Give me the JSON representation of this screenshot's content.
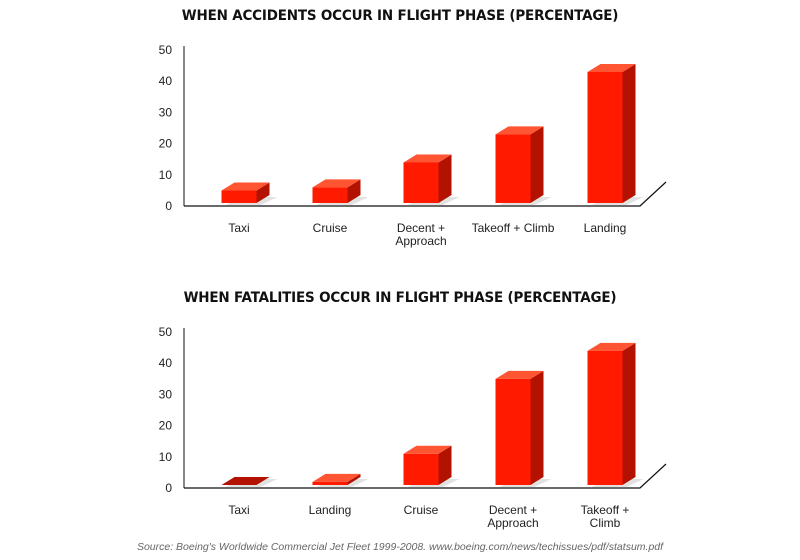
{
  "chart_data": [
    {
      "type": "bar",
      "title": "WHEN ACCIDENTS OCCUR IN FLIGHT PHASE (PERCENTAGE)",
      "categories": [
        "Taxi",
        "Cruise",
        "Decent + Approach",
        "Takeoff + Climb",
        "Landing"
      ],
      "category_lines": [
        [
          "Taxi"
        ],
        [
          "Cruise"
        ],
        [
          "Decent +",
          "Approach"
        ],
        [
          "Takeoff + Climb"
        ],
        [
          "Landing"
        ]
      ],
      "values": [
        4,
        5,
        13,
        22,
        42
      ],
      "ylim": [
        0,
        50
      ],
      "yticks": [
        0,
        10,
        20,
        30,
        40,
        50
      ],
      "xlabel": "",
      "ylabel": "",
      "grid": false,
      "style": "3d",
      "color": "#ff1a00"
    },
    {
      "type": "bar",
      "title": "WHEN FATALITIES OCCUR IN FLIGHT PHASE (PERCENTAGE)",
      "categories": [
        "Taxi",
        "Landing",
        "Cruise",
        "Decent + Approach",
        "Takeoff + Climb"
      ],
      "category_lines": [
        [
          "Taxi"
        ],
        [
          "Landing"
        ],
        [
          "Cruise"
        ],
        [
          "Decent +",
          "Approach"
        ],
        [
          "Takeoff +",
          "Climb"
        ]
      ],
      "values": [
        0,
        1,
        10,
        34,
        43
      ],
      "ylim": [
        0,
        50
      ],
      "yticks": [
        0,
        10,
        20,
        30,
        40,
        50
      ],
      "xlabel": "",
      "ylabel": "",
      "grid": false,
      "style": "3d",
      "color": "#ff1a00"
    }
  ],
  "source": "Source: Boeing's Worldwide Commercial Jet Fleet 1999-2008. www.boeing.com/news/techissues/pdf/statsum.pdf",
  "colors": {
    "bar_front": "#ff1a00",
    "bar_side": "#b31200",
    "bar_top": "#ff5533",
    "bar_shadow": "#e2e2e2",
    "axis": "#111111"
  }
}
